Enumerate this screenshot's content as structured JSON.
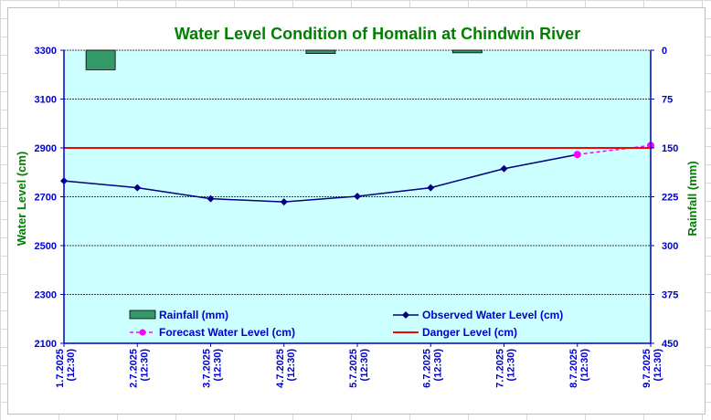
{
  "chart_data": {
    "type": "bar+line",
    "title": "Water Level Condition of Homalin at Chindwin River",
    "ylabel_left": "Water Level (cm)",
    "ylabel_right": "Rainfall (mm)",
    "ylim_left": [
      2100,
      3300
    ],
    "yticks_left": [
      "3300",
      "3100",
      "2900",
      "2700",
      "2500",
      "2300",
      "2100"
    ],
    "ylim_right_reversed": [
      0,
      450
    ],
    "yticks_right": [
      "0",
      "75",
      "150",
      "225",
      "300",
      "375",
      "450"
    ],
    "categories": [
      {
        "date": "1.7.2025",
        "time": "(12:30)"
      },
      {
        "date": "2.7.2025",
        "time": "(12:30)"
      },
      {
        "date": "3.7.2025",
        "time": "(12:30)"
      },
      {
        "date": "4.7.2025",
        "time": "(12:30)"
      },
      {
        "date": "5.7.2025",
        "time": "(12:30)"
      },
      {
        "date": "6.7.2025",
        "time": "(12:30)"
      },
      {
        "date": "7.7.2025",
        "time": "(12:30)"
      },
      {
        "date": "8.7.2025",
        "time": "(12:30)"
      },
      {
        "date": "9.7.2025",
        "time": "(12:30)"
      }
    ],
    "series": [
      {
        "name": "Rainfall (mm)",
        "kind": "bar",
        "axis": "right",
        "color": "#339966",
        "values": [
          30,
          0,
          0,
          5,
          0,
          4,
          0,
          0,
          0
        ]
      },
      {
        "name": "Observed Water Level (cm)",
        "kind": "line",
        "axis": "left",
        "color": "#000080",
        "values": [
          2765,
          2737,
          2692,
          2679,
          2702,
          2737,
          2815,
          2873,
          null
        ]
      },
      {
        "name": "Forecast Water Level (cm)",
        "kind": "dashed-line",
        "axis": "left",
        "color": "#ff00ff",
        "values": [
          null,
          null,
          null,
          null,
          null,
          null,
          null,
          2873,
          2910
        ]
      },
      {
        "name": "Danger Level (cm)",
        "kind": "hline",
        "axis": "left",
        "color": "#ff0000",
        "value": 2900
      }
    ],
    "grid": true,
    "legend": "bottom-inside",
    "colors": {
      "plot_bg": "#ccffff",
      "title": "#008000",
      "tick_text": "#0000cc",
      "axis_title": "#008000",
      "axis_line": "#0000cc"
    }
  }
}
